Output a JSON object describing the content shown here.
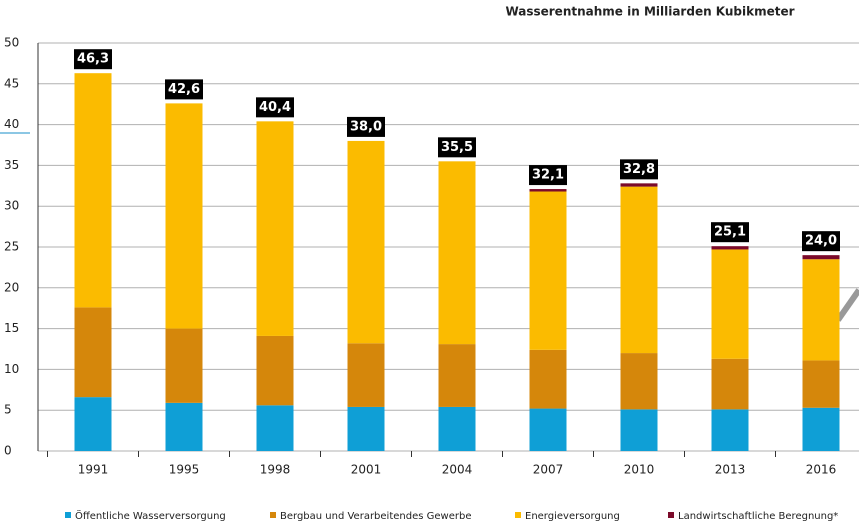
{
  "chart_data": {
    "type": "stacked_bar",
    "title": "Wasserentnahme in Milliarden Kubikmeter",
    "categories": [
      "1991",
      "1995",
      "1998",
      "2001",
      "2004",
      "2007",
      "2010",
      "2013",
      "2016"
    ],
    "series": [
      {
        "name": "Öffentliche Wasserversorgung",
        "color": "#0f9fd6",
        "values": [
          6.6,
          5.9,
          5.6,
          5.4,
          5.4,
          5.2,
          5.1,
          5.1,
          5.3
        ]
      },
      {
        "name": "Bergbau und Verarbeitendes Gewerbe",
        "color": "#d5870b",
        "values": [
          11.0,
          9.1,
          8.5,
          7.8,
          7.7,
          7.2,
          6.9,
          6.2,
          5.8
        ]
      },
      {
        "name": "Energieversorgung",
        "color": "#fbbb00",
        "values": [
          28.7,
          27.6,
          26.3,
          24.8,
          22.4,
          19.4,
          20.4,
          13.4,
          12.4
        ]
      },
      {
        "name": "Landwirtschaftliche Beregnung*",
        "color": "#7b0a2a",
        "values": [
          0,
          0,
          0,
          0,
          0,
          0.3,
          0.4,
          0.4,
          0.5
        ]
      }
    ],
    "totals": [
      46.3,
      42.6,
      40.4,
      38.0,
      35.5,
      32.1,
      32.8,
      25.1,
      24.0
    ],
    "total_labels": [
      "46,3",
      "42,6",
      "40,4",
      "38,0",
      "35,5",
      "32,1",
      "32,8",
      "25,1",
      "24,0"
    ],
    "ylim": [
      0,
      50
    ],
    "yticks": [
      0,
      5,
      10,
      15,
      20,
      25,
      30,
      35,
      40,
      45,
      50
    ],
    "grid": true
  }
}
